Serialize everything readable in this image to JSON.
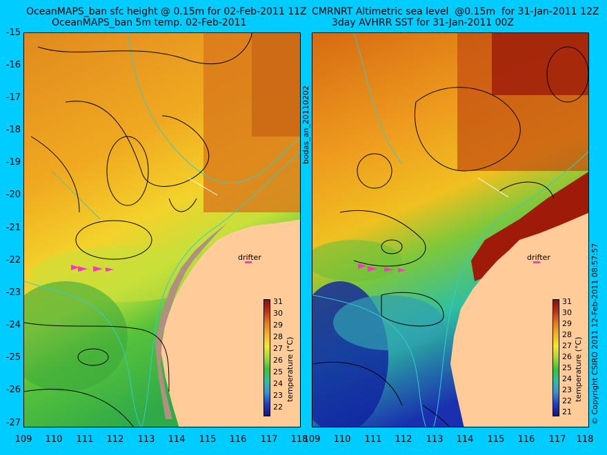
{
  "titles": {
    "left_line1": "OceanMAPS_ban sfc height @ 0.15m for 02-Feb-2011 11Z",
    "left_line2": "OceanMAPS_ban 5m temp. 02-Feb-2011",
    "right_line1": "CMRNRT Altimetric sea level  @0.15m  for 31-Jan-2011 12Z",
    "right_line2": "3day AVHRR SST for 31-Jan-2011 00Z"
  },
  "y_axis_labels": [
    "-15",
    "-16",
    "-17",
    "-18",
    "-19",
    "-20",
    "-21",
    "-22",
    "-23",
    "-24",
    "-25",
    "-26",
    "-27"
  ],
  "x_axis_labels": [
    "109",
    "110",
    "111",
    "112",
    "113",
    "114",
    "115",
    "116",
    "117",
    "118"
  ],
  "left_colorbar": {
    "ticks": [
      "31",
      "30",
      "29",
      "28",
      "27",
      "26",
      "25",
      "24",
      "23",
      "22"
    ],
    "label": "temperature (°C)"
  },
  "right_colorbar": {
    "ticks": [
      "31",
      "30",
      "29",
      "28",
      "27",
      "26",
      "25",
      "24",
      "23",
      "22",
      "21"
    ],
    "label": "temperature (°C)"
  },
  "drifter_label": "drifter",
  "vertical_mid_text": "bodas_an_20110202",
  "copyright_text": "© Copyright CSIRO 2011   12-Feb-2011 08:57:57",
  "colors": {
    "background": "#00ccff",
    "land": "#ffcc99",
    "coast_shelf": "#b09080",
    "contour": "#000000",
    "bathymetry": "#33cccc",
    "drifter_arrow": "#ff33cc"
  }
}
